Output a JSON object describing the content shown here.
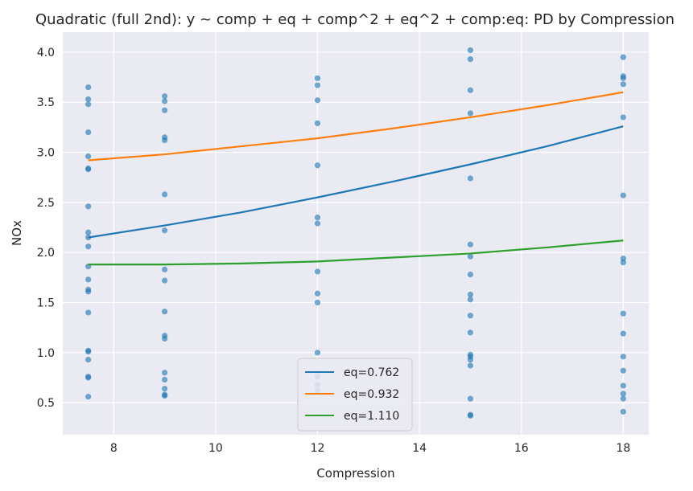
{
  "chart_data": {
    "type": "scatter",
    "title": "Quadratic (full 2nd): y ~ comp + eq + comp^2 + eq^2 + comp:eq: PD by Compression",
    "xlabel": "Compression",
    "ylabel": "NOx",
    "xlim": [
      7.0,
      18.5
    ],
    "ylim": [
      0.18,
      4.2
    ],
    "xticks": [
      8,
      10,
      12,
      14,
      16,
      18
    ],
    "yticks": [
      0.5,
      1.0,
      1.5,
      2.0,
      2.5,
      3.0,
      3.5,
      4.0
    ],
    "xtick_labels": [
      "8",
      "10",
      "12",
      "14",
      "16",
      "18"
    ],
    "ytick_labels": [
      "0.5",
      "1.0",
      "1.5",
      "2.0",
      "2.5",
      "3.0",
      "3.5",
      "4.0"
    ],
    "grid": true,
    "legend_position": "lower-center",
    "scatter": {
      "color": "#1f77b4",
      "points": [
        [
          7.5,
          3.65
        ],
        [
          7.5,
          3.53
        ],
        [
          7.5,
          3.48
        ],
        [
          7.5,
          3.2
        ],
        [
          7.5,
          2.96
        ],
        [
          7.5,
          2.84
        ],
        [
          7.5,
          2.83
        ],
        [
          7.5,
          2.46
        ],
        [
          7.5,
          2.2
        ],
        [
          7.5,
          2.15
        ],
        [
          7.5,
          2.06
        ],
        [
          7.5,
          1.86
        ],
        [
          7.5,
          1.73
        ],
        [
          7.5,
          1.63
        ],
        [
          7.5,
          1.61
        ],
        [
          7.5,
          1.4
        ],
        [
          7.5,
          1.02
        ],
        [
          7.5,
          1.01
        ],
        [
          7.5,
          0.93
        ],
        [
          7.5,
          0.76
        ],
        [
          7.5,
          0.75
        ],
        [
          7.5,
          0.56
        ],
        [
          9,
          3.56
        ],
        [
          9,
          3.51
        ],
        [
          9,
          3.42
        ],
        [
          9,
          3.15
        ],
        [
          9,
          3.12
        ],
        [
          9,
          2.58
        ],
        [
          9,
          2.22
        ],
        [
          9,
          1.83
        ],
        [
          9,
          1.72
        ],
        [
          9,
          1.41
        ],
        [
          9,
          1.17
        ],
        [
          9,
          1.14
        ],
        [
          9,
          0.8
        ],
        [
          9,
          0.73
        ],
        [
          9,
          0.64
        ],
        [
          9,
          0.58
        ],
        [
          9,
          0.57
        ],
        [
          12,
          3.74
        ],
        [
          12,
          3.67
        ],
        [
          12,
          3.52
        ],
        [
          12,
          3.29
        ],
        [
          12,
          2.87
        ],
        [
          12,
          2.35
        ],
        [
          12,
          2.29
        ],
        [
          12,
          1.81
        ],
        [
          12,
          1.59
        ],
        [
          12,
          1.5
        ],
        [
          12,
          1.0
        ],
        [
          12,
          0.76
        ],
        [
          12,
          0.68
        ],
        [
          12,
          0.62
        ],
        [
          15,
          4.02
        ],
        [
          15,
          3.93
        ],
        [
          15,
          3.62
        ],
        [
          15,
          3.39
        ],
        [
          15,
          2.74
        ],
        [
          15,
          2.08
        ],
        [
          15,
          1.96
        ],
        [
          15,
          1.78
        ],
        [
          15,
          1.58
        ],
        [
          15,
          1.53
        ],
        [
          15,
          1.37
        ],
        [
          15,
          1.2
        ],
        [
          15,
          0.98
        ],
        [
          15,
          0.96
        ],
        [
          15,
          0.93
        ],
        [
          15,
          0.87
        ],
        [
          15,
          0.54
        ],
        [
          15,
          0.38
        ],
        [
          15,
          0.37
        ],
        [
          18,
          3.95
        ],
        [
          18,
          3.76
        ],
        [
          18,
          3.74
        ],
        [
          18,
          3.68
        ],
        [
          18,
          3.35
        ],
        [
          18,
          2.57
        ],
        [
          18,
          1.94
        ],
        [
          18,
          1.9
        ],
        [
          18,
          1.39
        ],
        [
          18,
          1.19
        ],
        [
          18,
          0.96
        ],
        [
          18,
          0.82
        ],
        [
          18,
          0.67
        ],
        [
          18,
          0.59
        ],
        [
          18,
          0.54
        ],
        [
          18,
          0.41
        ]
      ]
    },
    "series": [
      {
        "name": "eq=0.762",
        "color": "#1f77b4",
        "x": [
          7.5,
          9,
          10.5,
          12,
          13.5,
          15,
          16.5,
          18
        ],
        "y": [
          2.15,
          2.27,
          2.4,
          2.55,
          2.71,
          2.88,
          3.06,
          3.26
        ]
      },
      {
        "name": "eq=0.932",
        "color": "#ff7f0e",
        "x": [
          7.5,
          9,
          10.5,
          12,
          13.5,
          15,
          16.5,
          18
        ],
        "y": [
          2.92,
          2.98,
          3.06,
          3.14,
          3.24,
          3.35,
          3.47,
          3.6
        ]
      },
      {
        "name": "eq=1.110",
        "color": "#2ca02c",
        "x": [
          7.5,
          9,
          10.5,
          12,
          13.5,
          15,
          16.5,
          18
        ],
        "y": [
          1.88,
          1.88,
          1.89,
          1.91,
          1.95,
          1.99,
          2.05,
          2.12
        ]
      }
    ]
  }
}
